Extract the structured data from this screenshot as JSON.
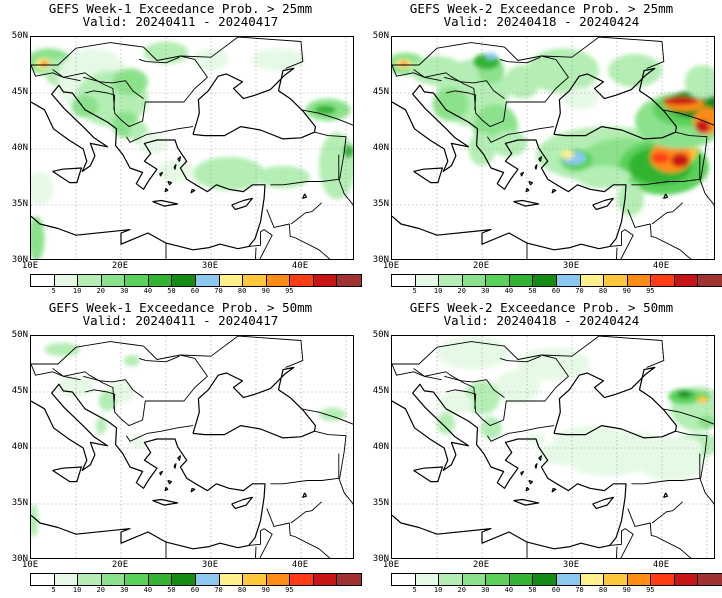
{
  "panels": [
    {
      "title_line1": "GEFS Week-1 Exceedance Prob. > 25mm",
      "title_line2": "Valid: 20240411 - 20240417"
    },
    {
      "title_line1": "GEFS Week-2 Exceedance Prob. > 25mm",
      "title_line2": "Valid: 20240418 - 20240424"
    },
    {
      "title_line1": "GEFS Week-1 Exceedance Prob. > 50mm",
      "title_line2": "Valid: 20240411 - 20240417"
    },
    {
      "title_line1": "GEFS Week-2 Exceedance Prob. > 50mm",
      "title_line2": "Valid: 20240418 - 20240424"
    }
  ],
  "lat_labels": [
    "50N",
    "45N",
    "40N",
    "35N",
    "30N"
  ],
  "lon_labels": [
    "10E",
    "20E",
    "30E",
    "40E"
  ],
  "colorbar": {
    "labels": [
      "5",
      "10",
      "20",
      "30",
      "40",
      "50",
      "60",
      "70",
      "80",
      "90",
      "95"
    ],
    "colors": [
      "#ffffff",
      "#e6f9e6",
      "#b4eeb4",
      "#8ce28c",
      "#5ad25a",
      "#32b432",
      "#148c14",
      "#8cc8f0",
      "#fff08c",
      "#ffc83c",
      "#ff8c14",
      "#ff3c14",
      "#c81414",
      "#a03232"
    ]
  }
}
